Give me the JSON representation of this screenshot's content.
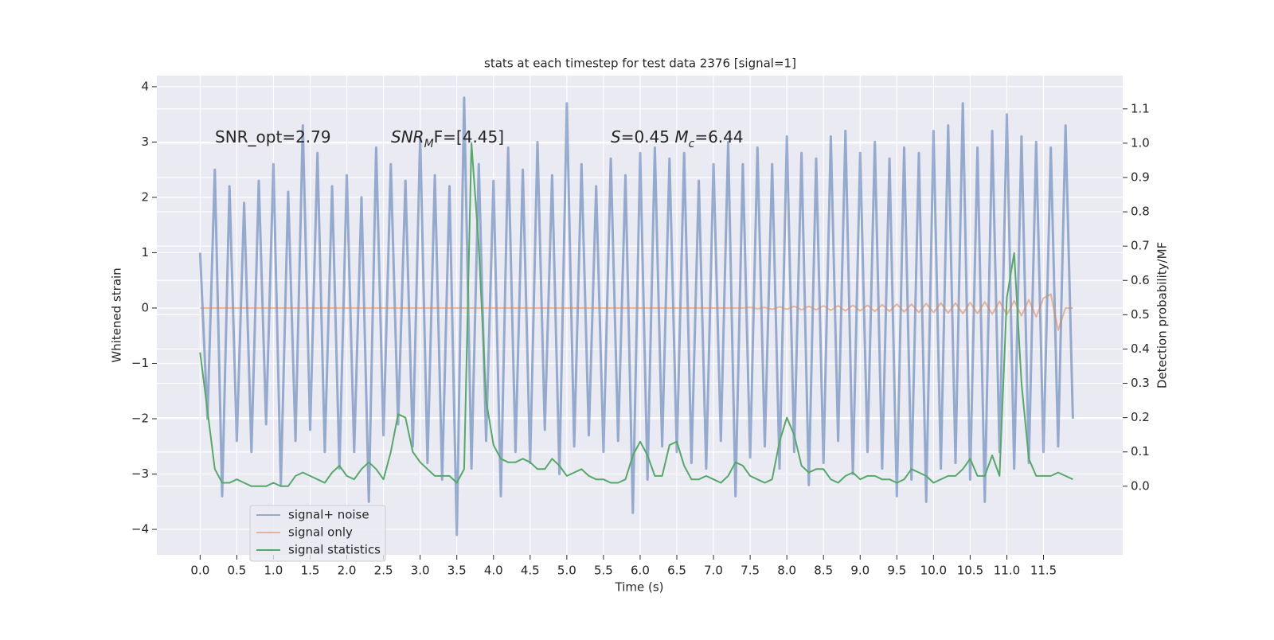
{
  "chart_data": {
    "type": "line",
    "title": "stats at each timestep for test data 2376 [signal=1]",
    "xlabel": "Time (s)",
    "ylabel": "Whitened strain",
    "y2label": "Detection probability/MF",
    "grid": true,
    "legend": "lower left",
    "xlim": [
      -0.59,
      12.58
    ],
    "ylim": [
      -4.46,
      4.2
    ],
    "y2lim": [
      -0.2,
      1.197
    ],
    "xticks": [
      {
        "value": 0,
        "label": "0.0"
      },
      0.5,
      {
        "value": 1,
        "label": "1.0"
      },
      1.5,
      {
        "value": 2,
        "label": "2.0"
      },
      2.5,
      {
        "value": 3,
        "label": "3.0"
      },
      3.5,
      {
        "value": 4,
        "label": "4.0"
      },
      4.5,
      {
        "value": 5,
        "label": "5.0"
      },
      5.5,
      {
        "value": 6,
        "label": "6.0"
      },
      6.5,
      {
        "value": 7,
        "label": "7.0"
      },
      7.5,
      {
        "value": 8,
        "label": "8.0"
      },
      8.5,
      {
        "value": 9,
        "label": "9.0"
      },
      9.5,
      {
        "value": 10,
        "label": "10.0"
      },
      10.5,
      {
        "value": 11,
        "label": "11.0"
      },
      11.5
    ],
    "yticks": [
      {
        "value": -4,
        "label": "−4"
      },
      {
        "value": -3,
        "label": "−3"
      },
      {
        "value": -2,
        "label": "−2"
      },
      {
        "value": -1,
        "label": "−1"
      },
      0,
      1,
      2,
      3,
      4
    ],
    "y2ticks": [
      {
        "value": 0,
        "label": "0.0"
      },
      0.1,
      0.2,
      0.3,
      0.4,
      0.5,
      0.6,
      0.7,
      0.8,
      0.9,
      {
        "value": 1,
        "label": "1.0"
      },
      1.1
    ],
    "annotations": [
      [
        {
          "text": "SNR_opt=2.79",
          "style": "normal"
        }
      ],
      [
        {
          "text": "SNR",
          "style": "italic"
        },
        {
          "text": "M",
          "style": "italic-sub"
        },
        {
          "text": "F=[4.45]",
          "style": "normal"
        }
      ],
      [
        {
          "text": "S",
          "style": "italic"
        },
        {
          "text": "=0.45  ",
          "style": "normal"
        },
        {
          "text": "M",
          "style": "italic"
        },
        {
          "text": "c",
          "style": "italic-sub"
        },
        {
          "text": "=6.44",
          "style": "normal"
        }
      ]
    ],
    "x": [
      0,
      0.1,
      0.2,
      0.3,
      0.4,
      0.5,
      0.6,
      0.7,
      0.8,
      0.9,
      1,
      1.1,
      1.2,
      1.3,
      1.4,
      1.5,
      1.6,
      1.7,
      1.8,
      1.9,
      2,
      2.1,
      2.2,
      2.3,
      2.4,
      2.5,
      2.6,
      2.7,
      2.8,
      2.9,
      3,
      3.1,
      3.2,
      3.3,
      3.4,
      3.5,
      3.6,
      3.7,
      3.8,
      3.9,
      4,
      4.1,
      4.2,
      4.3,
      4.4,
      4.5,
      4.6,
      4.7,
      4.8,
      4.9,
      5,
      5.1,
      5.2,
      5.3,
      5.4,
      5.5,
      5.6,
      5.7,
      5.8,
      5.9,
      6,
      6.1,
      6.2,
      6.3,
      6.4,
      6.5,
      6.6,
      6.7,
      6.8,
      6.9,
      7,
      7.1,
      7.2,
      7.3,
      7.4,
      7.5,
      7.6,
      7.7,
      7.8,
      7.9,
      8,
      8.1,
      8.2,
      8.3,
      8.4,
      8.5,
      8.6,
      8.7,
      8.8,
      8.9,
      9,
      9.1,
      9.2,
      9.3,
      9.4,
      9.5,
      9.6,
      9.7,
      9.8,
      9.9,
      10,
      10.1,
      10.2,
      10.3,
      10.4,
      10.5,
      10.6,
      10.7,
      10.8,
      10.9,
      11,
      11.1,
      11.2,
      11.3,
      11.4,
      11.5,
      11.6,
      11.7,
      11.8,
      11.9
    ],
    "series": [
      {
        "name": "signal+ noise",
        "color": "#4c72b0",
        "axis": "y",
        "values": [
          1.0,
          -2.0,
          2.5,
          -3.4,
          2.2,
          -2.4,
          1.9,
          -2.6,
          2.3,
          -2.1,
          2.6,
          -3.2,
          2.1,
          -2.4,
          3.3,
          -2.2,
          2.8,
          -2.6,
          2.2,
          -2.9,
          2.4,
          -2.6,
          2.0,
          -3.5,
          2.9,
          -2.3,
          2.6,
          -2.1,
          2.3,
          -2.5,
          3.1,
          -2.8,
          2.4,
          -3.1,
          2.2,
          -4.1,
          3.8,
          -2.9,
          2.6,
          -2.4,
          2.3,
          -3.4,
          2.9,
          -2.6,
          2.5,
          -2.8,
          3.0,
          -2.2,
          2.4,
          -3.0,
          3.7,
          -2.5,
          2.6,
          -2.3,
          2.2,
          -2.6,
          2.7,
          -2.4,
          2.4,
          -3.7,
          2.8,
          -3.1,
          2.9,
          -2.5,
          2.7,
          -2.6,
          2.8,
          -2.8,
          2.3,
          -2.9,
          2.6,
          -2.4,
          3.0,
          -3.4,
          2.6,
          -2.7,
          2.9,
          -2.5,
          2.6,
          -2.9,
          3.1,
          -2.6,
          2.8,
          -3.2,
          2.7,
          -2.8,
          3.1,
          -2.4,
          3.2,
          -3.0,
          2.8,
          -2.6,
          3.0,
          -2.9,
          2.7,
          -3.4,
          2.9,
          -3.1,
          2.8,
          -3.5,
          3.2,
          -2.9,
          3.3,
          -2.8,
          3.7,
          -3.1,
          2.9,
          -3.5,
          3.2,
          -2.6,
          3.5,
          -2.9,
          3.1,
          -2.8,
          3.0,
          -2.6,
          2.9,
          -2.5,
          3.3,
          -2.0
        ]
      },
      {
        "name": "signal only",
        "color": "#dd8452",
        "axis": "y",
        "values": [
          0,
          0,
          0,
          0,
          0,
          0,
          0,
          0,
          0,
          0,
          0,
          0,
          0,
          0,
          0,
          0,
          0,
          0,
          0,
          0,
          0,
          0,
          0,
          0,
          0,
          0,
          0,
          0,
          0,
          0,
          0,
          0,
          0,
          0,
          0,
          0,
          0,
          0,
          0,
          0,
          0,
          0,
          0,
          0,
          0,
          0,
          0,
          0,
          0,
          0,
          0,
          0,
          0,
          0,
          0,
          0,
          0,
          0,
          0,
          0,
          0,
          0,
          0,
          0,
          0,
          0,
          0,
          0,
          0,
          0,
          0,
          0,
          0,
          0,
          0,
          0.01,
          -0.01,
          0.01,
          -0.02,
          0.02,
          -0.02,
          0.03,
          -0.03,
          0.03,
          -0.03,
          0.04,
          -0.04,
          0.04,
          -0.05,
          0.05,
          -0.05,
          0.05,
          -0.06,
          0.06,
          -0.06,
          0.07,
          -0.07,
          0.07,
          -0.08,
          0.08,
          -0.08,
          0.09,
          -0.09,
          0.09,
          -0.1,
          0.1,
          -0.1,
          0.11,
          -0.11,
          0.12,
          -0.12,
          0.13,
          -0.14,
          0.15,
          -0.16,
          0.18,
          0.25,
          -0.4,
          0,
          0
        ]
      },
      {
        "name": "signal statistics",
        "color": "#55a868",
        "axis": "y2",
        "values": [
          0.39,
          0.22,
          0.05,
          0.01,
          0.01,
          0.02,
          0.01,
          0.0,
          0.0,
          0.0,
          0.01,
          0.0,
          0.0,
          0.03,
          0.04,
          0.03,
          0.02,
          0.01,
          0.04,
          0.06,
          0.03,
          0.02,
          0.05,
          0.07,
          0.05,
          0.02,
          0.1,
          0.21,
          0.2,
          0.1,
          0.07,
          0.05,
          0.03,
          0.03,
          0.03,
          0.01,
          0.05,
          1.0,
          0.7,
          0.25,
          0.12,
          0.08,
          0.07,
          0.07,
          0.08,
          0.07,
          0.05,
          0.05,
          0.08,
          0.06,
          0.03,
          0.04,
          0.05,
          0.03,
          0.02,
          0.02,
          0.01,
          0.01,
          0.02,
          0.09,
          0.13,
          0.09,
          0.03,
          0.03,
          0.12,
          0.13,
          0.06,
          0.02,
          0.02,
          0.03,
          0.02,
          0.01,
          0.03,
          0.07,
          0.06,
          0.03,
          0.02,
          0.01,
          0.02,
          0.13,
          0.2,
          0.15,
          0.06,
          0.04,
          0.05,
          0.05,
          0.02,
          0.01,
          0.03,
          0.04,
          0.02,
          0.03,
          0.03,
          0.02,
          0.02,
          0.01,
          0.02,
          0.05,
          0.04,
          0.03,
          0.01,
          0.02,
          0.03,
          0.03,
          0.05,
          0.08,
          0.03,
          0.03,
          0.09,
          0.03,
          0.55,
          0.68,
          0.3,
          0.08,
          0.03,
          0.03,
          0.03,
          0.04,
          0.03,
          0.02
        ]
      }
    ]
  }
}
